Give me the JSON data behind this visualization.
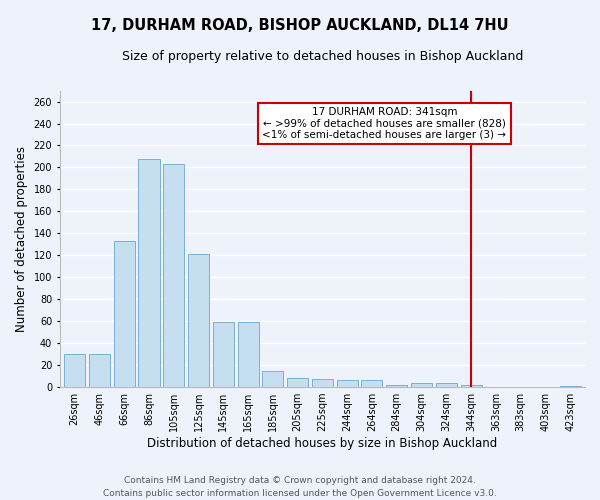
{
  "title": "17, DURHAM ROAD, BISHOP AUCKLAND, DL14 7HU",
  "subtitle": "Size of property relative to detached houses in Bishop Auckland",
  "xlabel": "Distribution of detached houses by size in Bishop Auckland",
  "ylabel": "Number of detached properties",
  "categories": [
    "26sqm",
    "46sqm",
    "66sqm",
    "86sqm",
    "105sqm",
    "125sqm",
    "145sqm",
    "165sqm",
    "185sqm",
    "205sqm",
    "225sqm",
    "244sqm",
    "264sqm",
    "284sqm",
    "304sqm",
    "324sqm",
    "344sqm",
    "363sqm",
    "383sqm",
    "403sqm",
    "423sqm"
  ],
  "values": [
    30,
    30,
    133,
    208,
    203,
    121,
    59,
    59,
    15,
    8,
    7,
    6,
    6,
    2,
    4,
    4,
    2,
    0,
    0,
    0,
    1
  ],
  "bar_color": "#c5dff0",
  "bar_edge_color": "#7ab0d4",
  "background_color": "#eef2fa",
  "grid_color": "#ffffff",
  "vline_x": 16,
  "vline_color": "#cc0000",
  "annotation_title": "17 DURHAM ROAD: 341sqm",
  "annotation_line1": "← >99% of detached houses are smaller (828)",
  "annotation_line2": "<1% of semi-detached houses are larger (3) →",
  "annotation_box_color": "#cc0000",
  "ylim": [
    0,
    270
  ],
  "yticks": [
    0,
    20,
    40,
    60,
    80,
    100,
    120,
    140,
    160,
    180,
    200,
    220,
    240,
    260
  ],
  "footer1": "Contains HM Land Registry data © Crown copyright and database right 2024.",
  "footer2": "Contains public sector information licensed under the Open Government Licence v3.0.",
  "title_fontsize": 10.5,
  "subtitle_fontsize": 9,
  "axis_label_fontsize": 8.5,
  "tick_fontsize": 7,
  "footer_fontsize": 6.5,
  "annotation_fontsize": 7.5
}
